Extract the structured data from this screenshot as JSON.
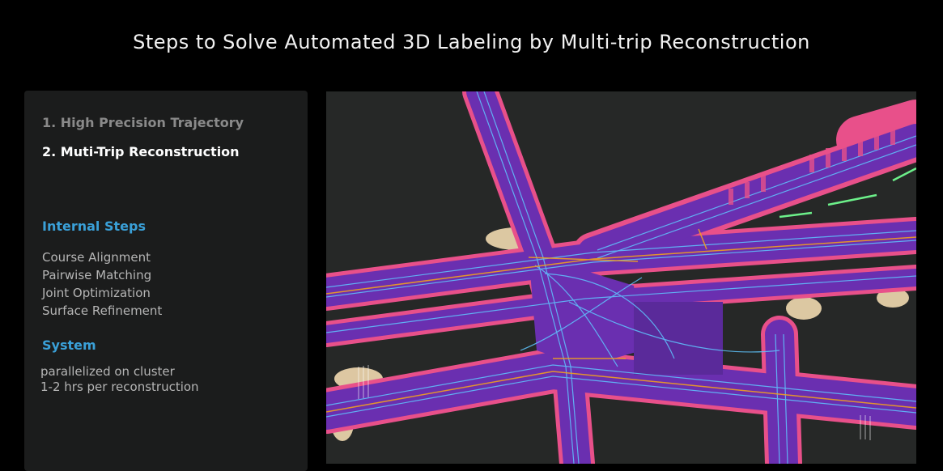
{
  "slide": {
    "title": "Steps to Solve Automated 3D Labeling by Multi-trip Reconstruction"
  },
  "panel": {
    "steps": [
      {
        "label": "1. High Precision Trajectory",
        "state": "inactive"
      },
      {
        "label": "2. Muti-Trip Reconstruction",
        "state": "active"
      }
    ],
    "internal_steps": {
      "heading": "Internal Steps",
      "items": [
        "Course Alignment",
        "Pairwise Matching",
        "Joint Optimization",
        "Surface Refinement"
      ]
    },
    "system": {
      "heading": "System",
      "items": [
        "parallelized on cluster",
        "1-2 hrs per reconstruction"
      ]
    }
  },
  "colors": {
    "background": "#000000",
    "panel": "#1b1c1c",
    "accent": "#3aa0d8",
    "road": "#6a2fb0",
    "road_edge": "#e8508a",
    "lane_lines": "#5fc6ff",
    "terrain": "#f1d9b0"
  }
}
